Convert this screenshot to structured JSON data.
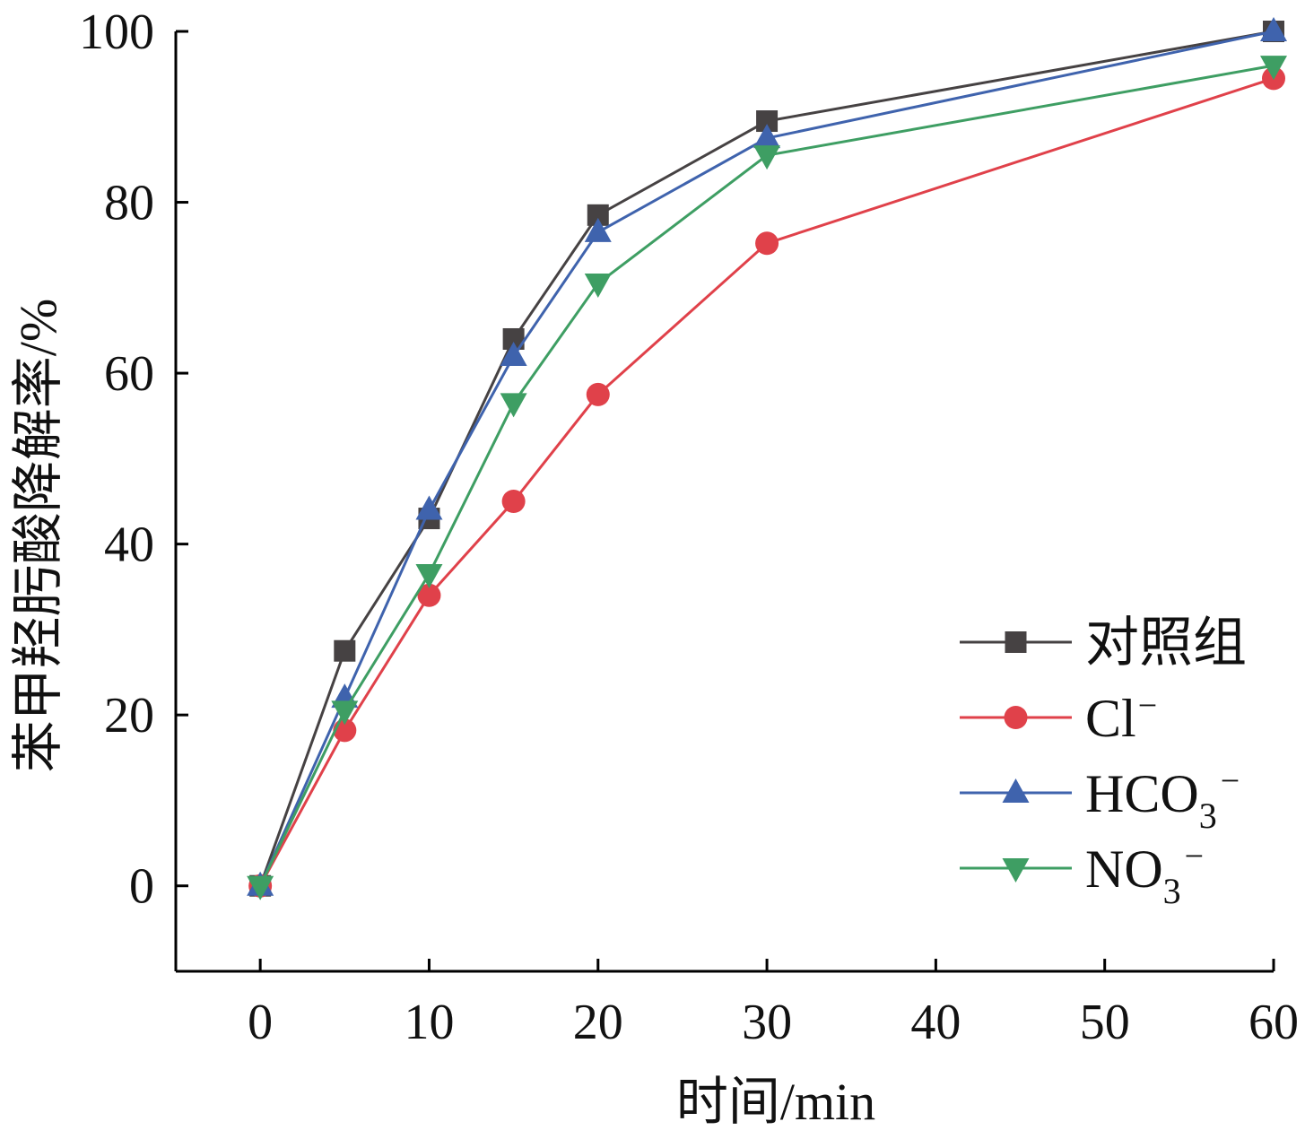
{
  "chart_data": {
    "type": "line",
    "xlabel": "时间/min",
    "ylabel": "苯甲羟肟酸降解率/%",
    "xlim": [
      -5,
      60
    ],
    "ylim": [
      -10,
      100
    ],
    "xticks": [
      0,
      10,
      20,
      30,
      40,
      50,
      60
    ],
    "yticks": [
      0,
      20,
      40,
      60,
      80,
      100
    ],
    "x": [
      0,
      5,
      10,
      15,
      20,
      30,
      60
    ],
    "grid": false,
    "legend_position": "bottom-right",
    "series": [
      {
        "name": "对照组",
        "color": "#464243",
        "marker": "square",
        "values": [
          0,
          27.5,
          43,
          64,
          78.5,
          89.5,
          100
        ]
      },
      {
        "name": "Cl",
        "name_sup": "−",
        "color": "#e0414a",
        "marker": "circle",
        "values": [
          0,
          18.2,
          34,
          45,
          57.5,
          75.2,
          94.5
        ]
      },
      {
        "name": "HCO",
        "name_sub": "3",
        "name_sup": "−",
        "color": "#3f63ad",
        "marker": "triangle-up",
        "values": [
          0,
          22,
          44,
          62,
          76.5,
          87.5,
          100
        ]
      },
      {
        "name": "NO",
        "name_sub": "3",
        "name_sup": "−",
        "color": "#3e9e63",
        "marker": "triangle-down",
        "values": [
          0,
          20.5,
          36.5,
          56.5,
          70.5,
          85.5,
          96
        ]
      }
    ]
  }
}
